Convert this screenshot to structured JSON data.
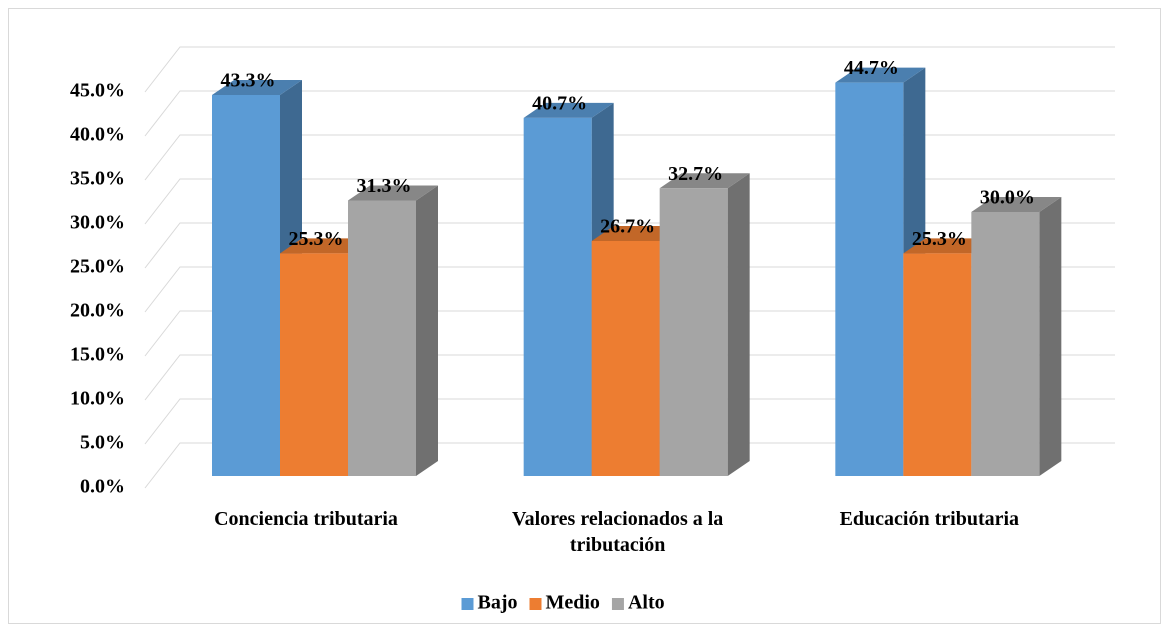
{
  "chart_data": {
    "type": "bar3d",
    "categories": [
      "Conciencia tributaria",
      "Valores relacionados a la tributación",
      "Educación tributaria"
    ],
    "series": [
      {
        "name": "Bajo",
        "color": "#5b9bd5",
        "values": [
          43.3,
          40.7,
          44.7
        ],
        "value_labels": [
          "43.3%",
          "40.7%",
          "44.7%"
        ]
      },
      {
        "name": "Medio",
        "color": "#ed7d31",
        "values": [
          25.3,
          26.7,
          25.3
        ],
        "value_labels": [
          "25.3%",
          "26.7%",
          "25.3%"
        ]
      },
      {
        "name": "Alto",
        "color": "#a5a5a5",
        "values": [
          31.3,
          32.7,
          30
        ],
        "value_labels": [
          "31.3%",
          "32.7%",
          "30.0%"
        ]
      }
    ],
    "ylim": [
      0,
      45
    ],
    "yticks": [
      {
        "value": 0,
        "label": "0.0%"
      },
      {
        "value": 5,
        "label": "5.0%"
      },
      {
        "value": 10,
        "label": "10.0%"
      },
      {
        "value": 15,
        "label": "15.0%"
      },
      {
        "value": 20,
        "label": "20.0%"
      },
      {
        "value": 25,
        "label": "25.0%"
      },
      {
        "value": 30,
        "label": "30.0%"
      },
      {
        "value": 35,
        "label": "35.0%"
      },
      {
        "value": 40,
        "label": "40.0%"
      },
      {
        "value": 45,
        "label": "45.0%"
      }
    ],
    "grid": true,
    "legend": "bottom"
  }
}
